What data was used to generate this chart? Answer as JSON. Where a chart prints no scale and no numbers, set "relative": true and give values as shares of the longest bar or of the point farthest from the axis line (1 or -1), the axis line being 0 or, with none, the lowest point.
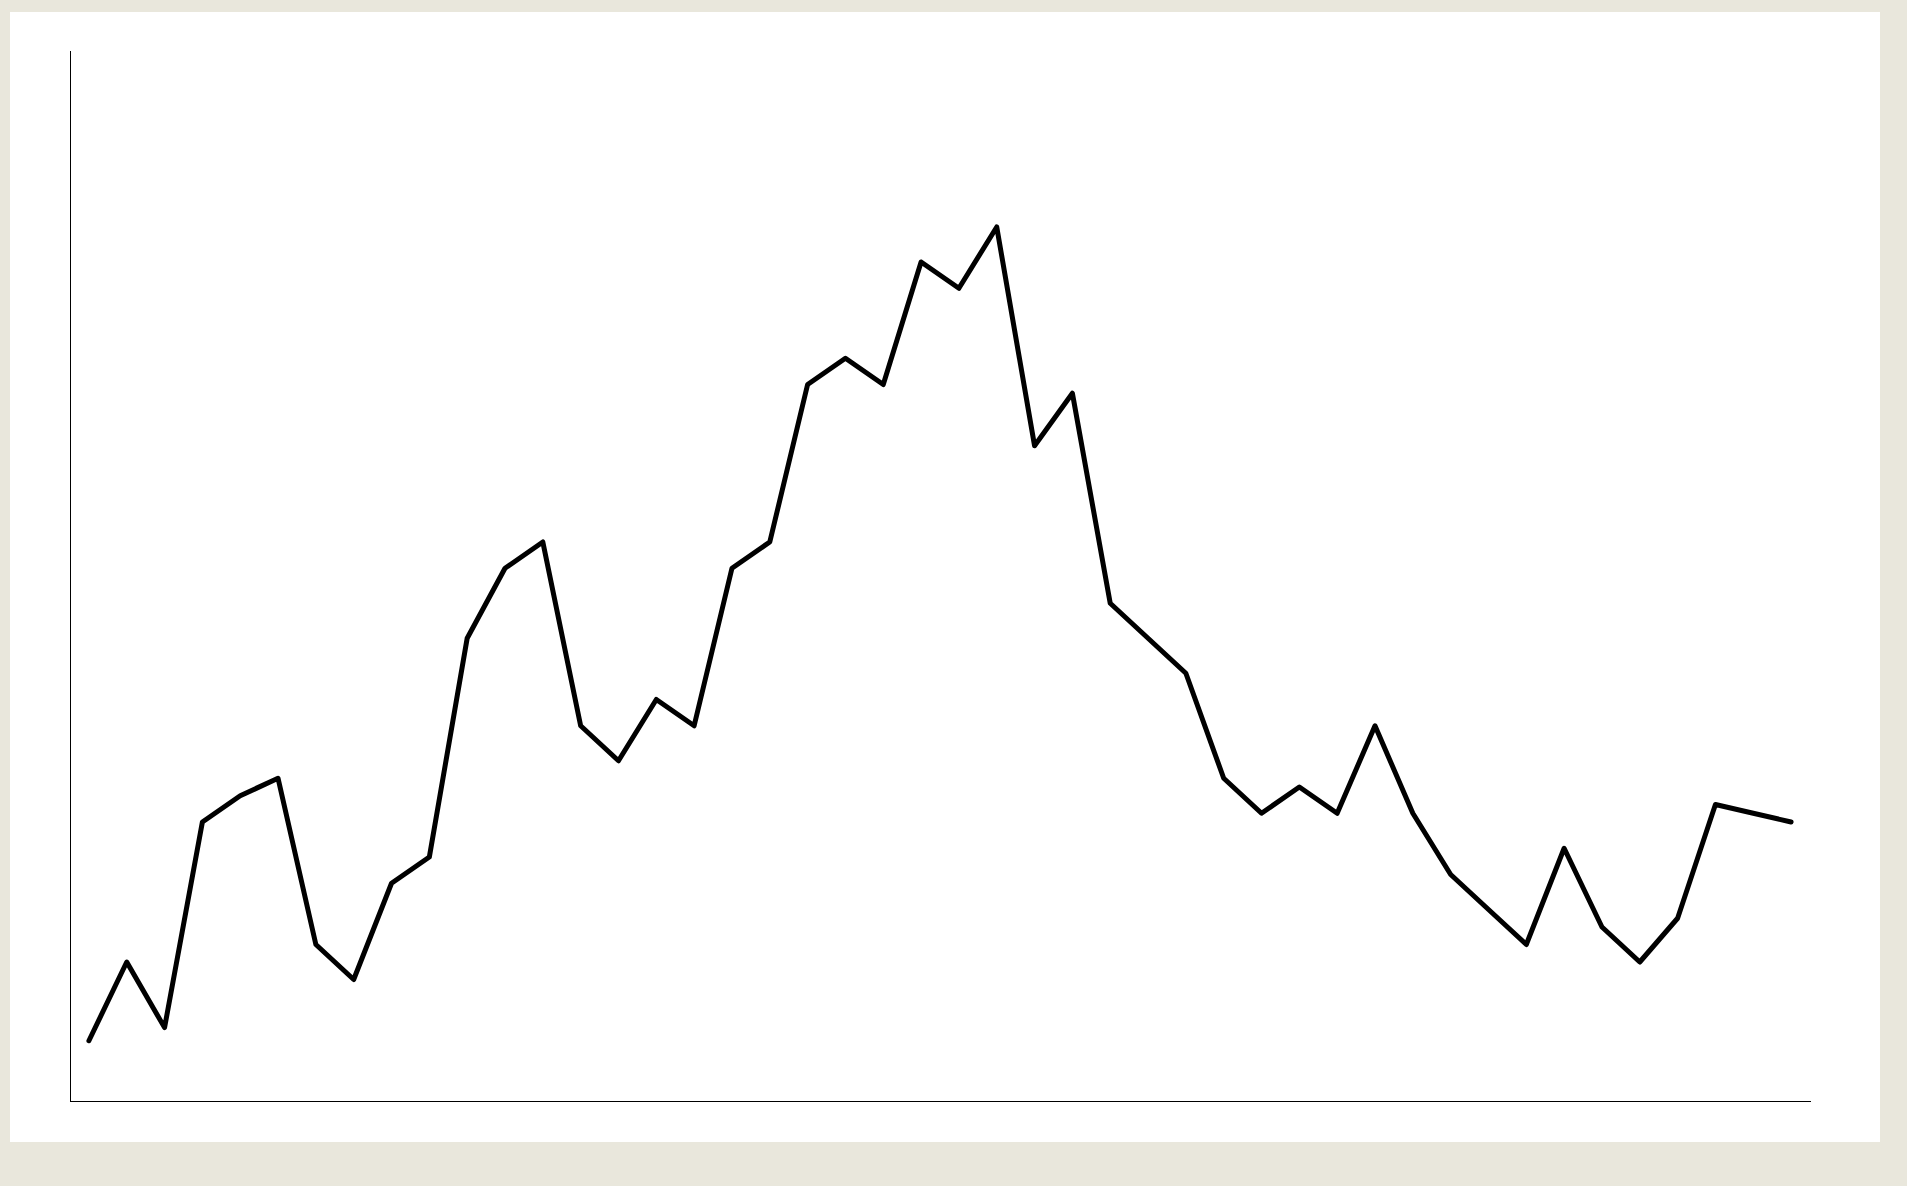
{
  "chart_data": {
    "type": "line",
    "relative": true,
    "color": "#000000",
    "categories": [
      null,
      null,
      null,
      null,
      null,
      null,
      null,
      null,
      null,
      null,
      null,
      null,
      null,
      null,
      null,
      null,
      null,
      null,
      null,
      null,
      null,
      null,
      null,
      null,
      null,
      null,
      null,
      null,
      null,
      null,
      null,
      null,
      null,
      null,
      null,
      null,
      null,
      null,
      null,
      null,
      null,
      null,
      null,
      null,
      null,
      null
    ],
    "values": [
      0.07,
      0.16,
      0.085,
      0.32,
      0.35,
      0.37,
      0.18,
      0.14,
      0.25,
      0.28,
      0.53,
      0.61,
      0.64,
      0.43,
      0.39,
      0.46,
      0.43,
      0.61,
      0.64,
      0.82,
      0.85,
      0.82,
      0.96,
      0.93,
      1,
      0.75,
      0.81,
      0.57,
      0.53,
      0.49,
      0.37,
      0.33,
      0.36,
      0.33,
      0.43,
      0.33,
      0.26,
      0.22,
      0.18,
      0.29,
      0.2,
      0.16,
      0.21,
      0.34,
      0.33,
      0.32
    ]
  }
}
